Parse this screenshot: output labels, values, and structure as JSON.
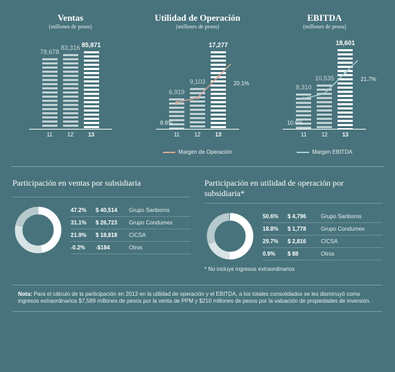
{
  "bg": "#48737c",
  "bar_charts": [
    {
      "title": "Ventas",
      "subtitle": "(millones de pesos)",
      "years": [
        "11",
        "12",
        "13"
      ],
      "values": [
        78678,
        83316,
        85871
      ],
      "value_labels": [
        "78,678",
        "83,316",
        "85,871"
      ],
      "ymax": 90000,
      "bar_color_dim": "#c0d0d3",
      "bar_color_highlight": "#ffffff",
      "highlight_index": 2
    },
    {
      "title": "Utilidad de Operación",
      "subtitle": "(millones de pesos)",
      "years": [
        "11",
        "12",
        "13"
      ],
      "values": [
        6919,
        9103,
        17277
      ],
      "value_labels": [
        "6,919",
        "9,103",
        "17,277"
      ],
      "ymax": 18000,
      "bar_color_dim": "#c0d0d3",
      "bar_color_highlight": "#ffffff",
      "highlight_index": 2,
      "line": {
        "color": "#d7a998",
        "pct_labels": [
          "8.8%",
          "",
          "20.1%"
        ],
        "pct_values": [
          8.8,
          10.9,
          20.1
        ],
        "legend": "Margen de Operación"
      }
    },
    {
      "title": "EBITDA",
      "subtitle": "(millones de pesos)",
      "years": [
        "11",
        "12",
        "13"
      ],
      "values": [
        8310,
        10535,
        18601
      ],
      "value_labels": [
        "8,310",
        "10,535",
        "18,601"
      ],
      "ymax": 19000,
      "bar_color_dim": "#c0d0d3",
      "bar_color_highlight": "#ffffff",
      "highlight_index": 2,
      "line": {
        "color": "#a9cdd3",
        "pct_labels": [
          "10.6%",
          "",
          "21.7%"
        ],
        "pct_values": [
          10.6,
          12.6,
          21.7
        ],
        "legend": "Margen EBITDA"
      }
    }
  ],
  "donuts": [
    {
      "title": "Participación en ventas por subsidiaria",
      "rows": [
        {
          "pct": "47.2%",
          "val": "$ 40,514",
          "name": "Grupo Sanborns",
          "num": 47.2,
          "color": "#ffffff"
        },
        {
          "pct": "31.1%",
          "val": "$ 26,723",
          "name": "Grupo Condumex",
          "num": 31.1,
          "color": "#d8e3e5"
        },
        {
          "pct": "21.9%",
          "val": "$ 18,818",
          "name": "CICSA",
          "num": 21.9,
          "color": "#b6c9cc"
        },
        {
          "pct": "-0.2%",
          "val": "-$184",
          "name": "Otros",
          "num": 0.2,
          "color": "#7a9ba1"
        }
      ],
      "ring_bg": "#3a616a"
    },
    {
      "title": "Participación en utilidad de operación por subsidiaria*",
      "rows": [
        {
          "pct": "50.6%",
          "val": "$ 4,796",
          "name": "Grupo Sanborns",
          "num": 50.6,
          "color": "#ffffff"
        },
        {
          "pct": "18.8%",
          "val": "$ 1,778",
          "name": "Grupo Condumex",
          "num": 18.8,
          "color": "#d8e3e5"
        },
        {
          "pct": "29.7%",
          "val": "$ 2,816",
          "name": "CICSA",
          "num": 29.7,
          "color": "#b6c9cc"
        },
        {
          "pct": "0.9%",
          "val": "$ 88",
          "name": "Otros",
          "num": 0.9,
          "color": "#7a9ba1"
        }
      ],
      "ring_bg": "#3a616a",
      "footnote": "* No incluye ingresos extraordinarios"
    }
  ],
  "note": {
    "label": "Nota:",
    "text": "Para el cálculo de la participación en 2013 en la utilidad de operación y el EBITDA, a los totales consolidados se les disminuyó como ingresos extraordinarios $7,589 millones de pesos por la venta de PPM y $210 millones de pesos por la valuación de propiedades de inversión."
  }
}
